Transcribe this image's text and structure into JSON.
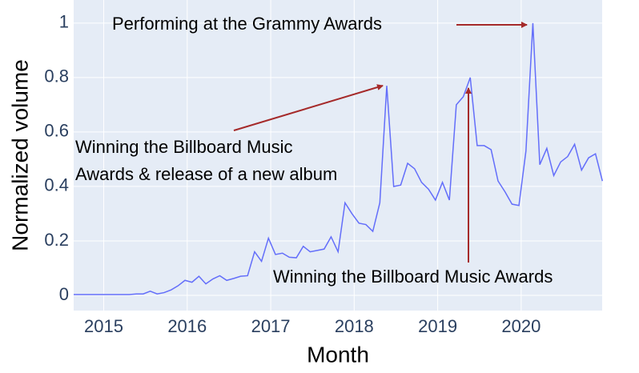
{
  "chart_data": {
    "type": "line",
    "x_title": "Month",
    "y_title": "Normalized volume",
    "x": [
      2014.64,
      2014.723,
      2014.807,
      2014.89,
      2014.973,
      2015.057,
      2015.14,
      2015.223,
      2015.307,
      2015.39,
      2015.473,
      2015.557,
      2015.64,
      2015.723,
      2015.807,
      2015.89,
      2015.973,
      2016.057,
      2016.14,
      2016.223,
      2016.307,
      2016.39,
      2016.473,
      2016.557,
      2016.64,
      2016.723,
      2016.807,
      2016.89,
      2016.973,
      2017.057,
      2017.14,
      2017.223,
      2017.307,
      2017.39,
      2017.473,
      2017.557,
      2017.64,
      2017.723,
      2017.807,
      2017.89,
      2017.973,
      2018.057,
      2018.14,
      2018.223,
      2018.307,
      2018.39,
      2018.473,
      2018.557,
      2018.64,
      2018.723,
      2018.807,
      2018.89,
      2018.973,
      2019.057,
      2019.14,
      2019.223,
      2019.307,
      2019.39,
      2019.473,
      2019.557,
      2019.64,
      2019.723,
      2019.807,
      2019.89,
      2019.973,
      2020.057,
      2020.14,
      2020.223,
      2020.307,
      2020.39,
      2020.473,
      2020.557,
      2020.64,
      2020.723,
      2020.807,
      2020.89,
      2020.973
    ],
    "series": [
      {
        "color": "#636efa",
        "values": [
          0.003,
          0.003,
          0.003,
          0.003,
          0.003,
          0.003,
          0.003,
          0.003,
          0.003,
          0.005,
          0.005,
          0.015,
          0.005,
          0.01,
          0.02,
          0.035,
          0.055,
          0.048,
          0.07,
          0.042,
          0.06,
          0.072,
          0.055,
          0.062,
          0.07,
          0.072,
          0.16,
          0.125,
          0.21,
          0.15,
          0.155,
          0.14,
          0.138,
          0.18,
          0.16,
          0.165,
          0.17,
          0.215,
          0.16,
          0.34,
          0.3,
          0.265,
          0.26,
          0.235,
          0.34,
          0.77,
          0.4,
          0.405,
          0.485,
          0.465,
          0.415,
          0.39,
          0.35,
          0.415,
          0.35,
          0.7,
          0.73,
          0.8,
          0.55,
          0.55,
          0.535,
          0.42,
          0.38,
          0.335,
          0.33,
          0.53,
          1.0,
          0.48,
          0.54,
          0.44,
          0.49,
          0.51,
          0.555,
          0.46,
          0.505,
          0.52,
          0.42
        ]
      }
    ],
    "xlim": [
      2014.64,
      2020.97
    ],
    "xticks": [
      2015,
      2016,
      2017,
      2018,
      2019,
      2020
    ],
    "ylim": [
      -0.056,
      1.085
    ],
    "yticks": [
      0,
      0.2,
      0.4,
      0.6,
      0.8,
      1
    ],
    "grid": true,
    "background": "#e5ecf6",
    "annotations": [
      {
        "text": [
          "Performing at the Grammy Awards"
        ]
      },
      {
        "text": [
          "Winning the Billboard Music",
          "Awards & release of a new album"
        ]
      },
      {
        "text": [
          "Winning the Billboard Music Awards"
        ]
      }
    ]
  }
}
